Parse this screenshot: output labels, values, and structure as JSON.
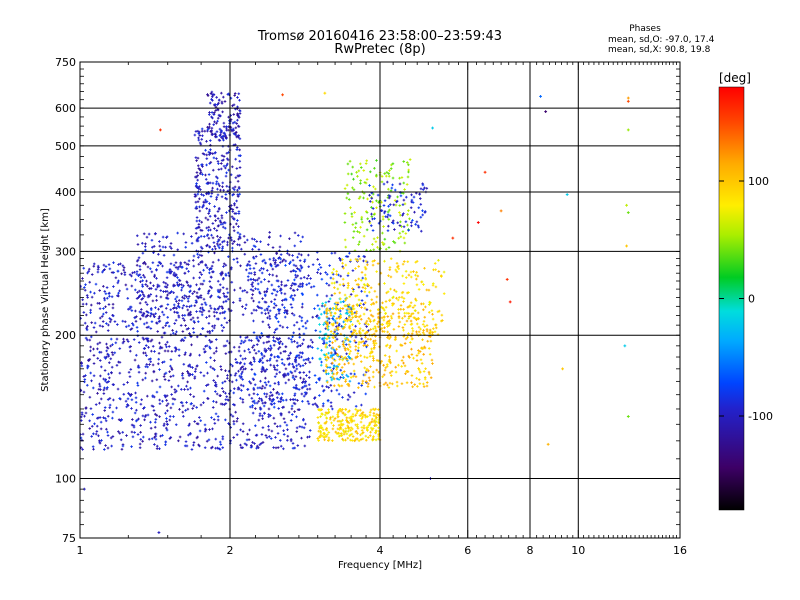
{
  "chart_data": {
    "type": "scatter",
    "title": "Tromsø 20160416 23:58:00–23:59:43",
    "subtitle": "RwPretec (8p)",
    "xlabel": "Frequency [MHz]",
    "ylabel": "Stationary phase Virtual Height [km]",
    "x_scale": "log2",
    "y_scale": "log",
    "xlim": [
      1,
      16
    ],
    "ylim": [
      75,
      750
    ],
    "x_ticks": [
      1,
      2,
      4,
      6,
      8,
      10,
      16
    ],
    "x_tick_labels": [
      "1",
      "2",
      "4",
      "6",
      "8",
      "10",
      "16"
    ],
    "y_ticks": [
      75,
      100,
      200,
      300,
      400,
      500,
      600,
      750
    ],
    "y_tick_labels": [
      "75",
      "100",
      "200",
      "300",
      "400",
      "500",
      "600",
      "750"
    ],
    "grid": true,
    "phases": {
      "title": "Phases",
      "line_o": "mean, sd,O: -97.0, 17.4",
      "line_x": "mean, sd,X:  90.8, 19.8"
    },
    "colorbar": {
      "label": "[deg]",
      "range": [
        -180,
        180
      ],
      "ticks": [
        100,
        0,
        -100
      ],
      "tick_labels": [
        "100",
        "0",
        "-100"
      ]
    },
    "series": [
      {
        "values": "phase",
        "clusters": [
          {
            "x": [
              1.0,
              2.9
            ],
            "y": [
              115,
              200
            ],
            "phase": -100,
            "count": 900
          },
          {
            "x": [
              1.0,
              2.0
            ],
            "y": [
              200,
              285
            ],
            "phase": -100,
            "count": 380
          },
          {
            "x": [
              1.3,
              2.8
            ],
            "y": [
              220,
              330
            ],
            "phase": -100,
            "count": 380
          },
          {
            "x": [
              1.7,
              2.1
            ],
            "y": [
              300,
              550
            ],
            "phase": -100,
            "count": 320
          },
          {
            "x": [
              1.8,
              2.1
            ],
            "y": [
              520,
              650
            ],
            "phase": -105,
            "count": 120
          },
          {
            "x": [
              2.2,
              3.8
            ],
            "y": [
              140,
              300
            ],
            "phase": -90,
            "count": 420
          },
          {
            "x": [
              3.0,
              3.5
            ],
            "y": [
              160,
              240
            ],
            "phase": -30,
            "count": 110
          },
          {
            "x": [
              3.0,
              4.0
            ],
            "y": [
              120,
              140
            ],
            "phase": 90,
            "count": 250
          },
          {
            "x": [
              3.1,
              5.1
            ],
            "y": [
              155,
              235
            ],
            "phase": 100,
            "count": 420
          },
          {
            "x": [
              3.2,
              5.4
            ],
            "y": [
              200,
              290
            ],
            "phase": 90,
            "count": 260
          },
          {
            "x": [
              3.4,
              4.6
            ],
            "y": [
              300,
              470
            ],
            "phase": 50,
            "count": 160
          },
          {
            "x": [
              3.8,
              5.0
            ],
            "y": [
              330,
              420
            ],
            "phase": -90,
            "count": 90
          }
        ],
        "points": [
          {
            "x": 1.45,
            "y": 540,
            "phase": 160
          },
          {
            "x": 1.44,
            "y": 77,
            "phase": -100
          },
          {
            "x": 1.02,
            "y": 95,
            "phase": -100
          },
          {
            "x": 2.55,
            "y": 640,
            "phase": 150
          },
          {
            "x": 3.1,
            "y": 645,
            "phase": 90
          },
          {
            "x": 5.05,
            "y": 100,
            "phase": -100
          },
          {
            "x": 5.1,
            "y": 545,
            "phase": -20
          },
          {
            "x": 5.6,
            "y": 320,
            "phase": 160
          },
          {
            "x": 6.3,
            "y": 345,
            "phase": 180
          },
          {
            "x": 6.5,
            "y": 440,
            "phase": 160
          },
          {
            "x": 7.2,
            "y": 262,
            "phase": 160
          },
          {
            "x": 7.3,
            "y": 235,
            "phase": 170
          },
          {
            "x": 7.0,
            "y": 365,
            "phase": 130
          },
          {
            "x": 8.4,
            "y": 635,
            "phase": -60
          },
          {
            "x": 8.6,
            "y": 590,
            "phase": -140
          },
          {
            "x": 8.7,
            "y": 118,
            "phase": 110
          },
          {
            "x": 9.3,
            "y": 170,
            "phase": 100
          },
          {
            "x": 9.5,
            "y": 395,
            "phase": -20
          },
          {
            "x": 12.6,
            "y": 630,
            "phase": 120
          },
          {
            "x": 12.6,
            "y": 620,
            "phase": 150
          },
          {
            "x": 12.6,
            "y": 540,
            "phase": 50
          },
          {
            "x": 12.5,
            "y": 375,
            "phase": 60
          },
          {
            "x": 12.6,
            "y": 362,
            "phase": 40
          },
          {
            "x": 12.5,
            "y": 308,
            "phase": 100
          },
          {
            "x": 12.4,
            "y": 190,
            "phase": -20
          },
          {
            "x": 12.6,
            "y": 135,
            "phase": 40
          }
        ]
      }
    ]
  }
}
